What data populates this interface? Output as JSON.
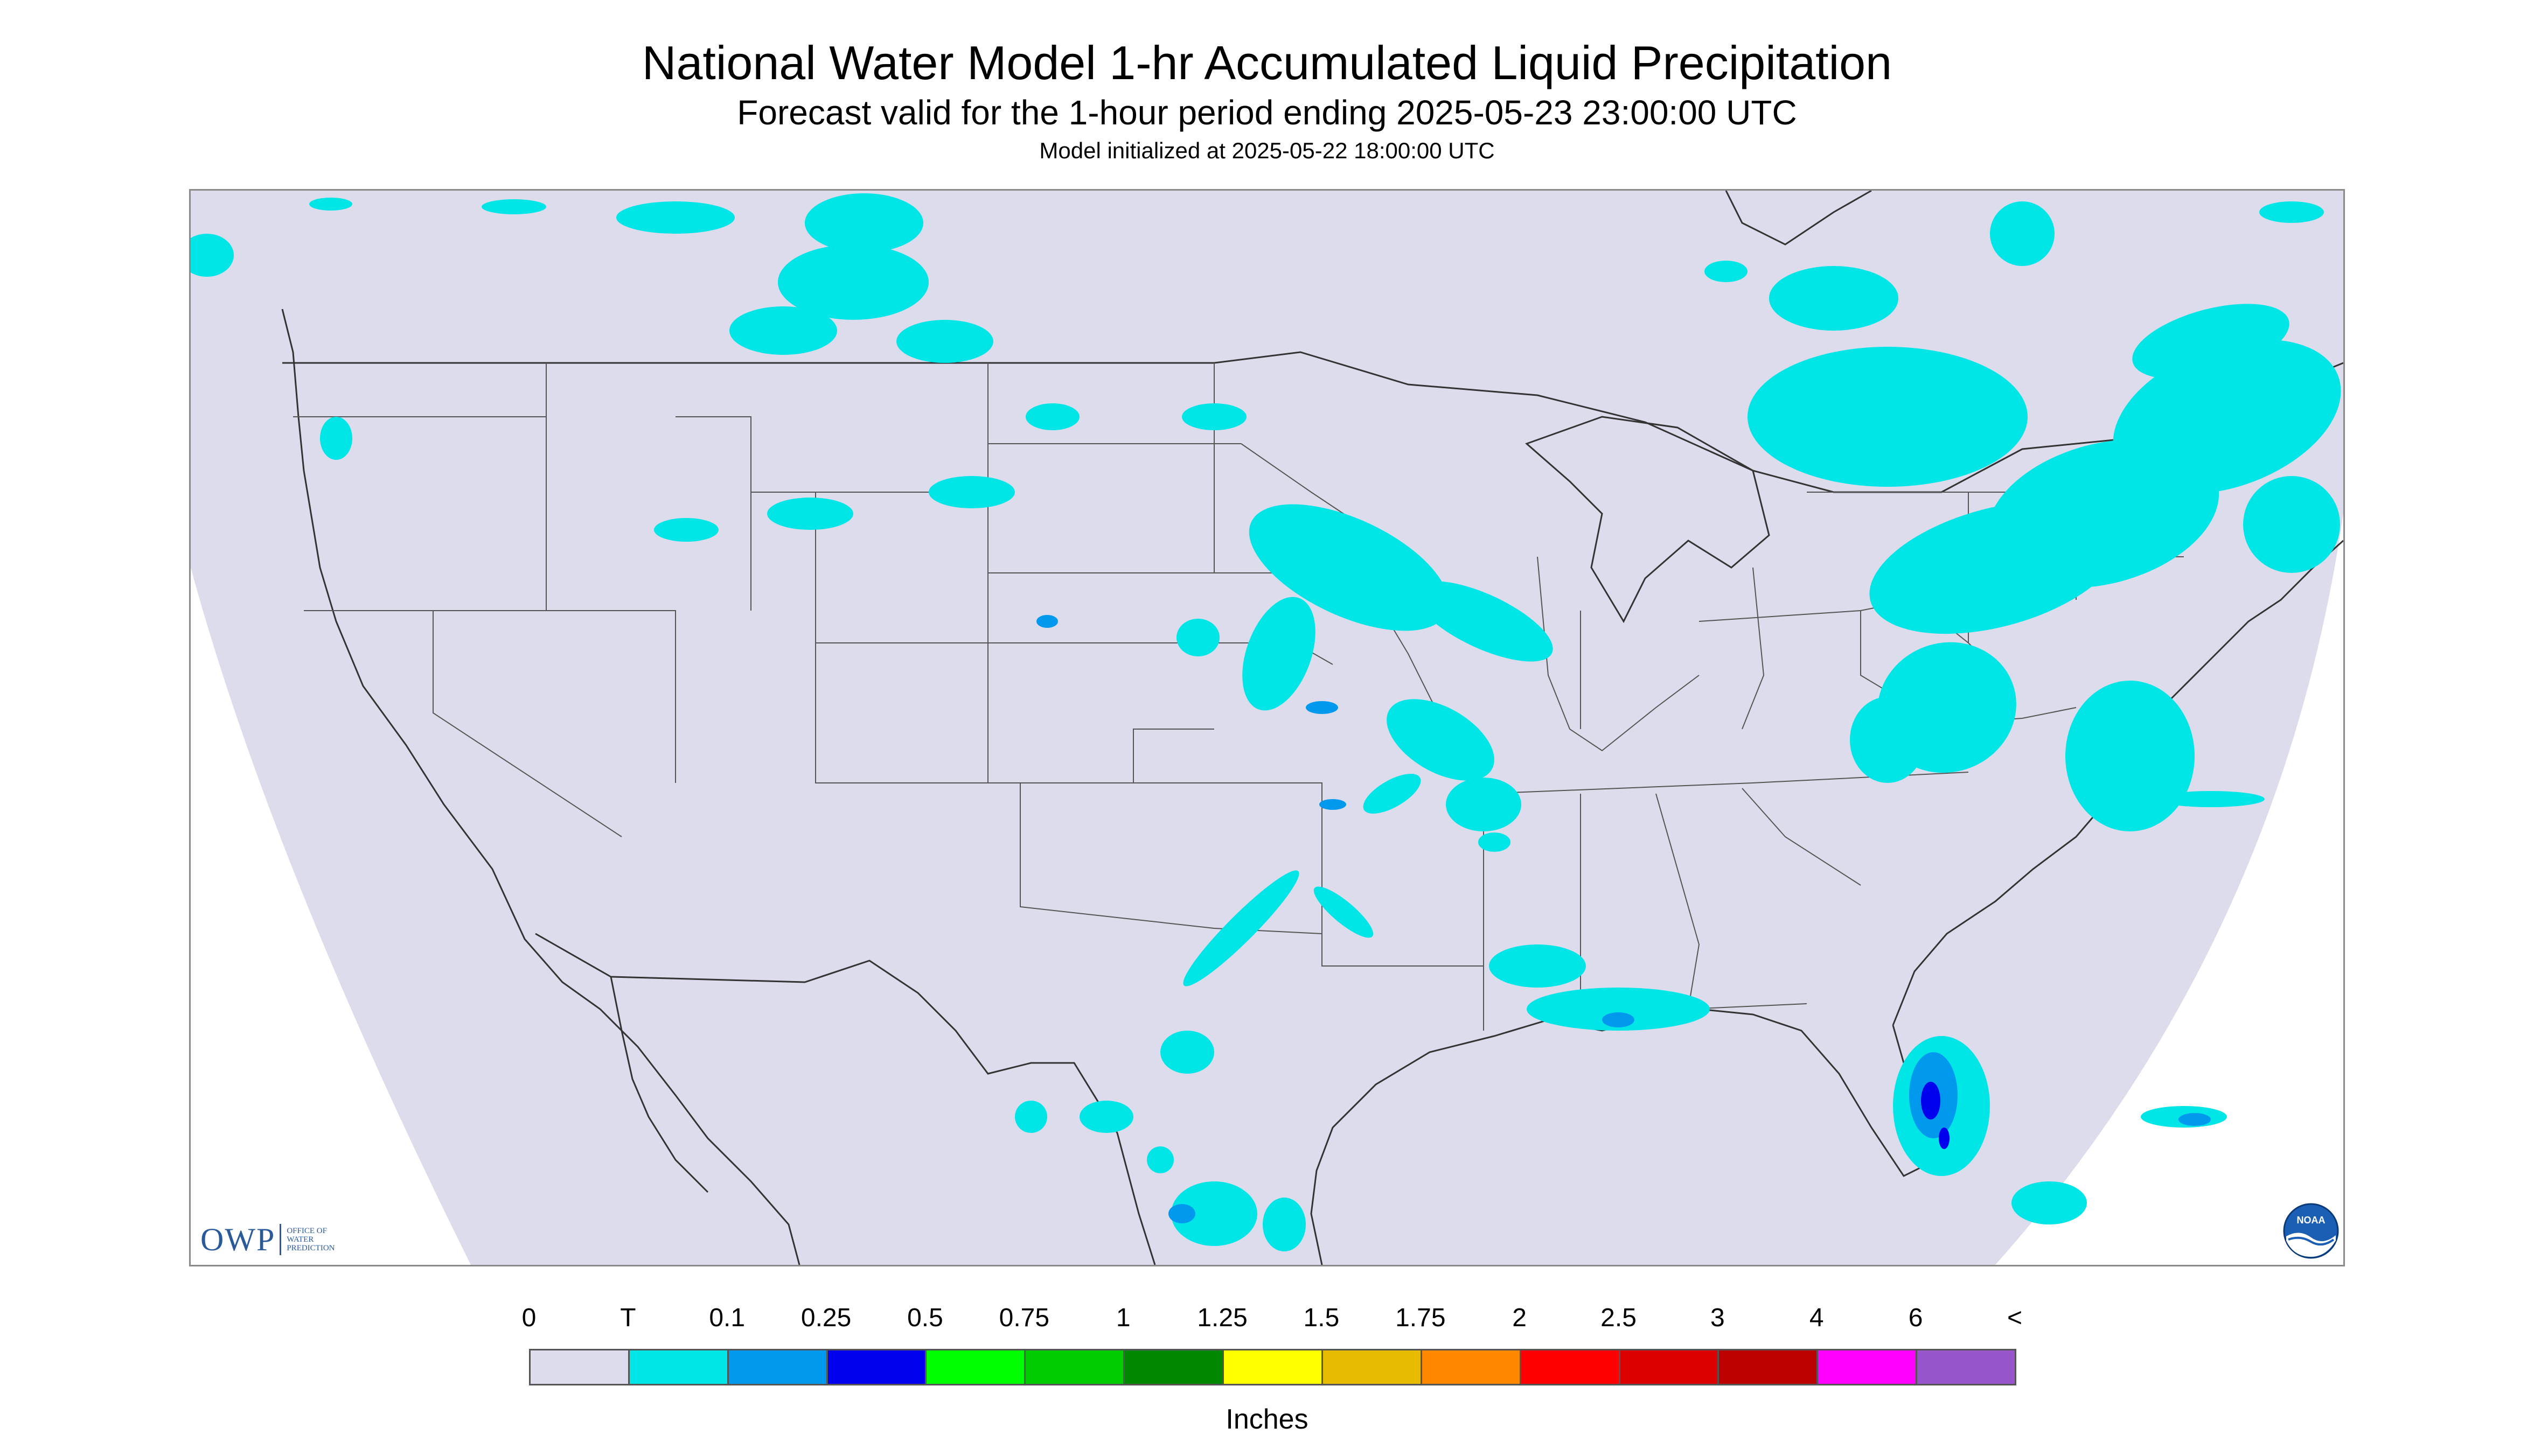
{
  "header": {
    "title": "National Water Model 1-hr Accumulated Liquid Precipitation",
    "subtitle": "Forecast valid for the 1-hour period ending 2025-05-23 23:00:00 UTC",
    "init": "Model initialized at 2025-05-22 18:00:00 UTC"
  },
  "logos": {
    "owp_big": "OWP",
    "owp_small": [
      "OFFICE OF",
      "WATER",
      "PREDICTION"
    ],
    "noaa_text": "NOAA"
  },
  "legend": {
    "ticks": [
      "0",
      "T",
      "0.1",
      "0.25",
      "0.5",
      "0.75",
      "1",
      "1.25",
      "1.5",
      "1.75",
      "2",
      "2.5",
      "3",
      "4",
      "6",
      "<"
    ],
    "colors": [
      "#dcdcec",
      "#00e5e5",
      "#0099ee",
      "#0000ee",
      "#00ff00",
      "#00cc00",
      "#008800",
      "#ffff00",
      "#e6bb00",
      "#ff8800",
      "#ff0000",
      "#dd0000",
      "#bb0000",
      "#ff00ff",
      "#9955cc"
    ],
    "units": "Inches"
  },
  "colors": {
    "domain": "#dcdcec",
    "precip_trace": "#00e5e5",
    "precip_light": "#0099ee",
    "precip_moderate": "#0000ee",
    "borders": "#333333"
  }
}
